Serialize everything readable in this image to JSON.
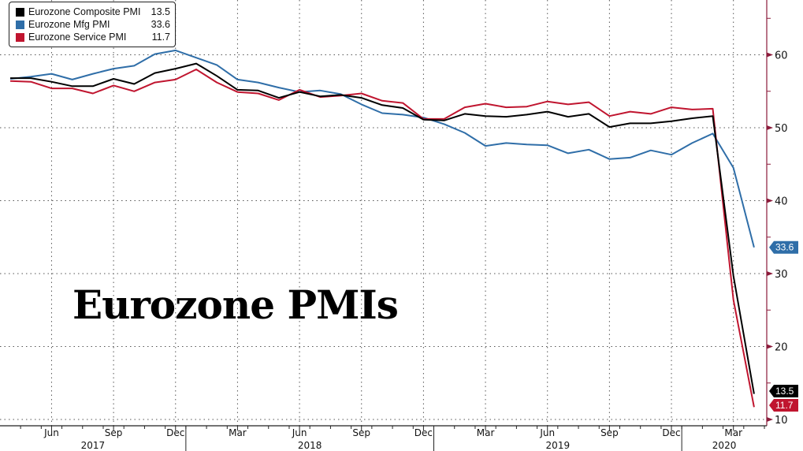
{
  "chart_data": {
    "type": "line",
    "title": "Eurozone PMIs",
    "x_start": "2017-04",
    "x_months": [
      "Apr 2017",
      "May 2017",
      "Jun 2017",
      "Jul 2017",
      "Aug 2017",
      "Sep 2017",
      "Oct 2017",
      "Nov 2017",
      "Dec 2017",
      "Jan 2018",
      "Feb 2018",
      "Mar 2018",
      "Apr 2018",
      "May 2018",
      "Jun 2018",
      "Jul 2018",
      "Aug 2018",
      "Sep 2018",
      "Oct 2018",
      "Nov 2018",
      "Dec 2018",
      "Jan 2019",
      "Feb 2019",
      "Mar 2019",
      "Apr 2019",
      "May 2019",
      "Jun 2019",
      "Jul 2019",
      "Aug 2019",
      "Sep 2019",
      "Oct 2019",
      "Nov 2019",
      "Dec 2019",
      "Jan 2020",
      "Feb 2020",
      "Mar 2020",
      "Apr 2020"
    ],
    "series": [
      {
        "name": "Eurozone Composite PMI",
        "last": "13.5",
        "color": "#000000",
        "label_text": "#ffffff",
        "values": [
          56.8,
          56.8,
          56.3,
          55.7,
          55.7,
          56.7,
          56.0,
          57.5,
          58.1,
          58.8,
          57.1,
          55.2,
          55.1,
          54.1,
          54.9,
          54.3,
          54.5,
          54.1,
          53.1,
          52.7,
          51.1,
          51.0,
          51.9,
          51.6,
          51.5,
          51.8,
          52.2,
          51.5,
          51.9,
          50.1,
          50.6,
          50.6,
          50.9,
          51.3,
          51.6,
          29.7,
          13.5
        ]
      },
      {
        "name": "Eurozone Mfg PMI",
        "last": "33.6",
        "color": "#2f6ea8",
        "label_text": "#ffffff",
        "values": [
          56.7,
          57.0,
          57.4,
          56.6,
          57.4,
          58.1,
          58.5,
          60.1,
          60.6,
          59.6,
          58.6,
          56.6,
          56.2,
          55.5,
          54.9,
          55.1,
          54.6,
          53.2,
          52.0,
          51.8,
          51.4,
          50.5,
          49.3,
          47.5,
          47.9,
          47.7,
          47.6,
          46.5,
          47.0,
          45.7,
          45.9,
          46.9,
          46.3,
          47.9,
          49.2,
          44.5,
          33.6
        ]
      },
      {
        "name": "Eurozone Service PMI",
        "last": "11.7",
        "color": "#c0152f",
        "label_text": "#ffffff",
        "values": [
          56.4,
          56.3,
          55.4,
          55.4,
          54.7,
          55.8,
          55.0,
          56.2,
          56.6,
          58.0,
          56.2,
          54.9,
          54.7,
          53.8,
          55.2,
          54.2,
          54.4,
          54.7,
          53.7,
          53.4,
          51.2,
          51.2,
          52.8,
          53.3,
          52.8,
          52.9,
          53.6,
          53.2,
          53.5,
          51.6,
          52.2,
          51.9,
          52.8,
          52.5,
          52.6,
          26.4,
          11.7
        ]
      }
    ],
    "y_ticks": [
      "10",
      "20",
      "30",
      "40",
      "50",
      "60"
    ],
    "ylim": [
      9.1,
      67.5
    ],
    "y_axis_side": "right",
    "grid": true,
    "legend_position": "top-left",
    "x_ticks": [
      {
        "label": "Jun",
        "month_index": 2
      },
      {
        "label": "Sep",
        "month_index": 5
      },
      {
        "label": "Dec",
        "month_index": 8
      },
      {
        "label": "Mar",
        "month_index": 11
      },
      {
        "label": "Jun",
        "month_index": 14
      },
      {
        "label": "Sep",
        "month_index": 17
      },
      {
        "label": "Dec",
        "month_index": 20
      },
      {
        "label": "Mar",
        "month_index": 23
      },
      {
        "label": "Jun",
        "month_index": 26
      },
      {
        "label": "Sep",
        "month_index": 29
      },
      {
        "label": "Dec",
        "month_index": 32
      },
      {
        "label": "Mar",
        "month_index": 35
      }
    ],
    "years": [
      {
        "label": "2017",
        "from": -1,
        "to": 8.5
      },
      {
        "label": "2018",
        "from": 8.5,
        "to": 20.5
      },
      {
        "label": "2019",
        "from": 20.5,
        "to": 32.5
      },
      {
        "label": "2020",
        "from": 32.5,
        "to": 37.5
      }
    ],
    "axis_color": "#8b1a3a"
  }
}
